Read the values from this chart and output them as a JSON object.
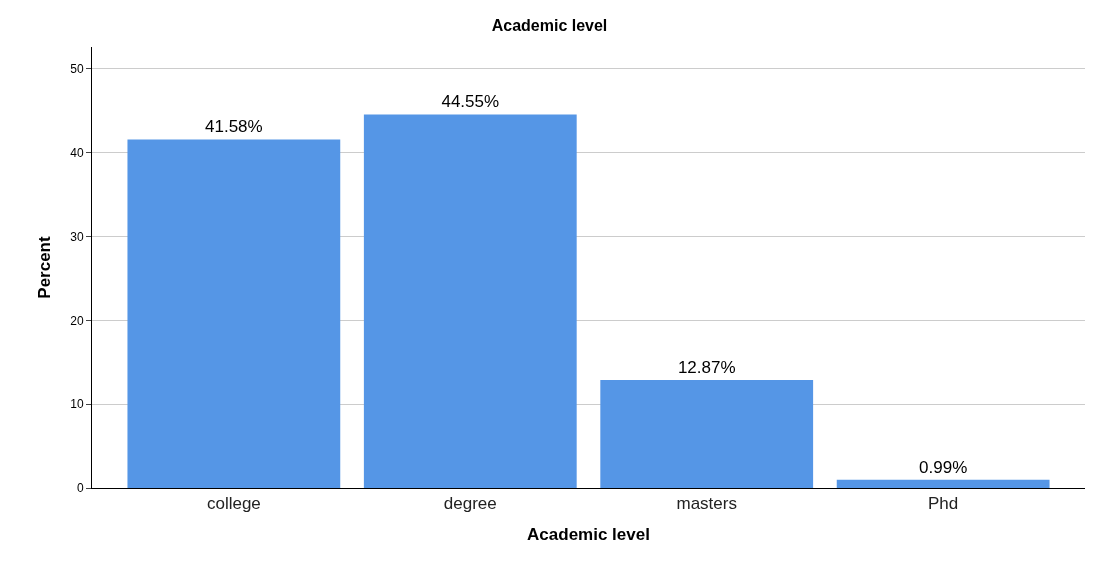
{
  "chart_data": {
    "type": "bar",
    "title": "Academic level",
    "xlabel": "Academic level",
    "ylabel": "Percent",
    "categories": [
      "college",
      "degree",
      "masters",
      "Phd"
    ],
    "values": [
      41.58,
      44.55,
      12.87,
      0.99
    ],
    "value_labels": [
      "41.58%",
      "44.55%",
      "12.87%",
      "0.99%"
    ],
    "color": "#5596e6",
    "ylim": [
      0,
      52.6
    ],
    "yticks": [
      0,
      10,
      20,
      30,
      40,
      50
    ],
    "grid": "y",
    "legend": false
  }
}
